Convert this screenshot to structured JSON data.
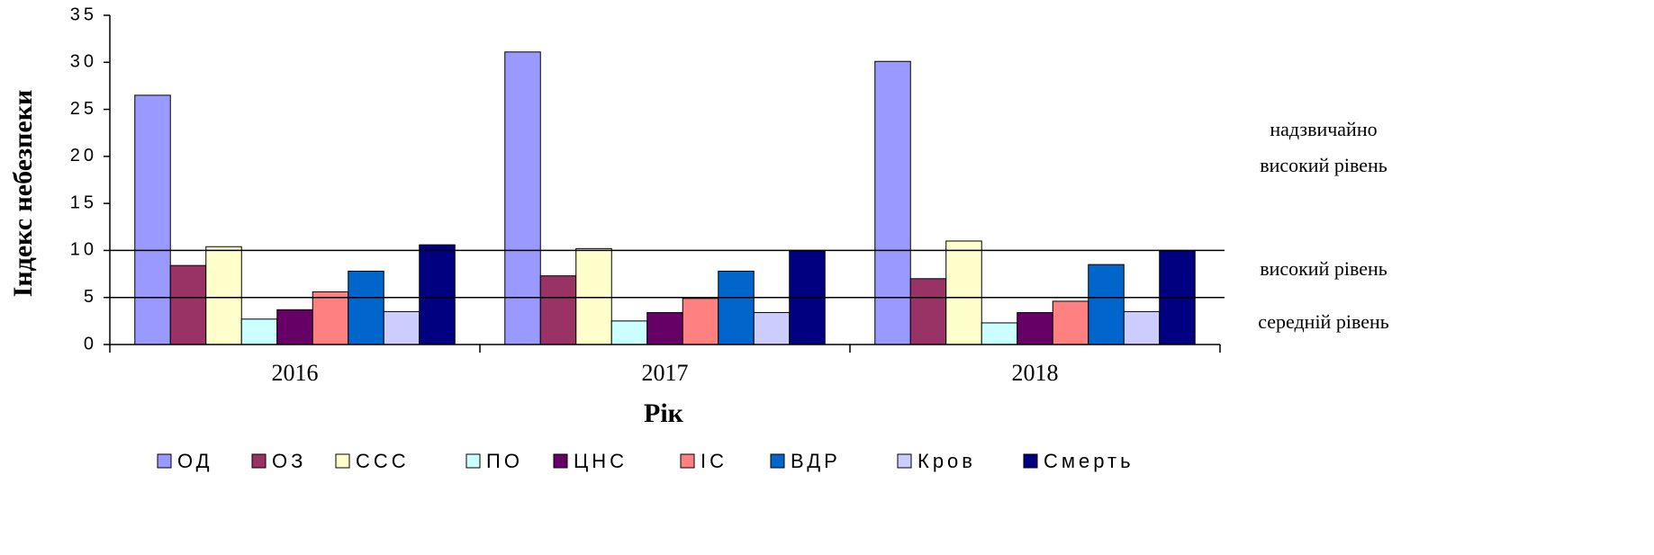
{
  "chart_data": {
    "type": "bar",
    "x_label": "Рік",
    "y_label": "Індекс небезпеки",
    "categories": [
      "2016",
      "2017",
      "2018"
    ],
    "series": [
      {
        "name": "ОД",
        "color": "#9999ff",
        "values": [
          26.5,
          31.1,
          30.1
        ]
      },
      {
        "name": "ОЗ",
        "color": "#993366",
        "values": [
          8.4,
          7.3,
          7.0
        ]
      },
      {
        "name": "ССС",
        "color": "#ffffcc",
        "values": [
          10.4,
          10.2,
          11.0
        ]
      },
      {
        "name": "ПО",
        "color": "#ccffff",
        "values": [
          2.7,
          2.5,
          2.3
        ]
      },
      {
        "name": "ЦНС",
        "color": "#660066",
        "values": [
          3.7,
          3.4,
          3.4
        ]
      },
      {
        "name": "ІС",
        "color": "#ff8080",
        "values": [
          5.6,
          4.9,
          4.6
        ]
      },
      {
        "name": "ВДР",
        "color": "#0066cc",
        "values": [
          7.8,
          7.8,
          8.5
        ]
      },
      {
        "name": "Кров",
        "color": "#ccccff",
        "values": [
          3.5,
          3.4,
          3.5
        ]
      },
      {
        "name": "Смерть",
        "color": "#000080",
        "values": [
          10.6,
          10.0,
          10.0
        ]
      }
    ],
    "ylim": [
      0,
      35
    ],
    "yticks": [
      0,
      5,
      10,
      15,
      20,
      25,
      30,
      35
    ],
    "reference_lines": [
      10,
      5
    ],
    "annotations": [
      [
        "надзвичайно",
        "високий рівень"
      ],
      [
        "високий рівень"
      ],
      [
        "середній рівень"
      ]
    ],
    "legend": "bottom"
  }
}
